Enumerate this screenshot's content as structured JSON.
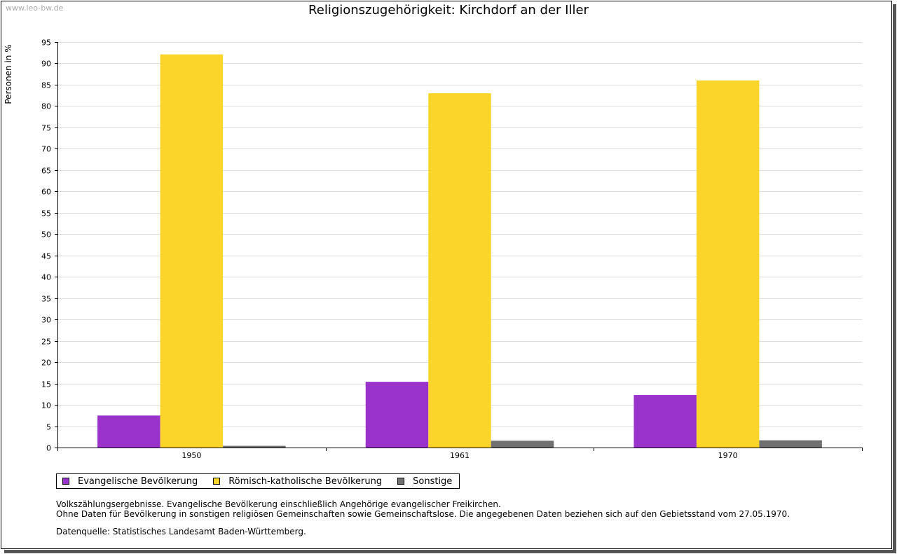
{
  "watermark": "www.leo-bw.de",
  "colors": {
    "evangelisch": "#9933cc",
    "katholisch": "#fcd52b",
    "sonstige": "#707070",
    "grid": "#dddddd"
  },
  "chart_data": {
    "type": "bar",
    "title": "Religionszugehörigkeit: Kirchdorf an der Iller",
    "xlabel": "",
    "ylabel": "Personen in %",
    "ylim": [
      0,
      95
    ],
    "yticks": [
      0,
      5,
      10,
      15,
      20,
      25,
      30,
      35,
      40,
      45,
      50,
      55,
      60,
      65,
      70,
      75,
      80,
      85,
      90,
      95
    ],
    "categories": [
      "1950",
      "1961",
      "1970"
    ],
    "series": [
      {
        "name": "Evangelische Bevölkerung",
        "color": "#9933cc",
        "values": [
          7.5,
          15.4,
          12.3
        ]
      },
      {
        "name": "Römisch-katholische Bevölkerung",
        "color": "#fcd52b",
        "values": [
          92.1,
          83.0,
          86.0
        ]
      },
      {
        "name": "Sonstige",
        "color": "#707070",
        "values": [
          0.4,
          1.6,
          1.7
        ]
      }
    ],
    "grid": true,
    "legend_position": "bottom"
  },
  "notes": {
    "line1": "Volkszählungsergebnisse. Evangelische Bevölkerung einschließlich Angehörige evangelischer Freikirchen.",
    "line2": "Ohne Daten für Bevölkerung in sonstigen religiösen Gemeinschaften sowie Gemeinschaftslose. Die angegebenen Daten beziehen sich auf den Gebietsstand vom 27.05.1970.",
    "source": "Datenquelle: Statistisches Landesamt Baden-Württemberg."
  }
}
